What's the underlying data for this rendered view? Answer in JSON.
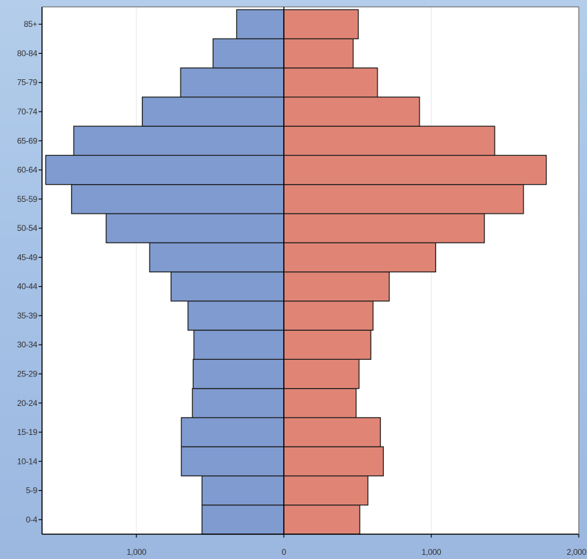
{
  "chart_data": {
    "type": "bar",
    "orientation": "horizontal-diverging",
    "title": "",
    "xlabel": "",
    "ylabel": "",
    "categories": [
      "0-4",
      "5-9",
      "10-14",
      "15-19",
      "20-24",
      "25-29",
      "30-34",
      "35-39",
      "40-44",
      "45-49",
      "50-54",
      "55-59",
      "60-64",
      "65-69",
      "70-74",
      "75-79",
      "80-84",
      "85+"
    ],
    "series": [
      {
        "side": "left",
        "color": "#7f9bcf",
        "values": [
          555,
          555,
          695,
          695,
          620,
          615,
          610,
          650,
          765,
          910,
          1205,
          1440,
          1615,
          1425,
          960,
          700,
          480,
          320
        ]
      },
      {
        "side": "right",
        "color": "#e08576",
        "values": [
          515,
          570,
          675,
          655,
          490,
          510,
          590,
          605,
          715,
          1030,
          1360,
          1625,
          1780,
          1430,
          920,
          635,
          470,
          505
        ]
      }
    ],
    "xlim": [
      -1640,
      2000
    ],
    "xticks": [
      {
        "value": -1000,
        "label": "1,000"
      },
      {
        "value": 0,
        "label": "0"
      },
      {
        "value": 1000,
        "label": "1,000"
      },
      {
        "value": 2000,
        "label": "2,000"
      }
    ],
    "grid": {
      "vertical": true,
      "horizontal": false
    },
    "legend": "none",
    "colors": {
      "background_gradient": "#a6c2e6",
      "plot_background": "#ffffff",
      "gridline": "#e6e6e6",
      "bar_edge": "#1a1a1a",
      "axis": "#000000"
    }
  }
}
